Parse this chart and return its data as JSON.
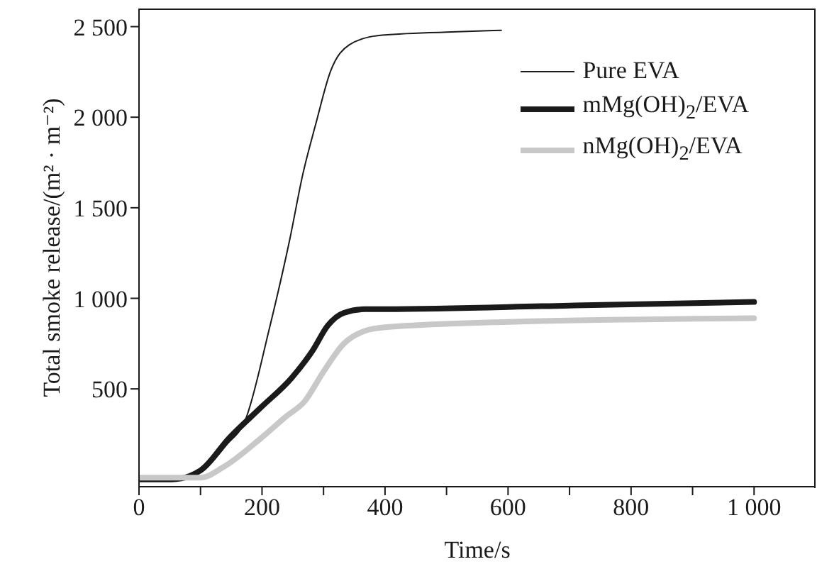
{
  "chart_data": {
    "type": "line",
    "xlabel": "Time/s",
    "ylabel": "Total smoke release/(m² · m⁻²)",
    "xlim": [
      0,
      1100
    ],
    "ylim": [
      -40,
      2600
    ],
    "xticks": [
      0,
      {
        "value": 100,
        "label": null
      },
      200,
      {
        "value": 300,
        "label": null
      },
      400,
      {
        "value": 500,
        "label": null
      },
      600,
      {
        "value": 700,
        "label": null
      },
      800,
      {
        "value": 900,
        "label": null
      },
      {
        "value": 1000,
        "label": "1 000"
      }
    ],
    "yticks": [
      500,
      {
        "value": 1000,
        "label": "1 000"
      },
      {
        "value": 1500,
        "label": "1 500"
      },
      {
        "value": 2000,
        "label": "2 000"
      },
      {
        "value": 2500,
        "label": "2 500"
      }
    ],
    "grid": false,
    "legend": "top right",
    "marker": "none",
    "line_style": "solid",
    "series": [
      {
        "name": "Pure EVA",
        "color": "#1a1a1a",
        "x": [
          0,
          60,
          100,
          142,
          173,
          211,
          246,
          266,
          288,
          311,
          342,
          388,
          500,
          589
        ],
        "values": [
          0,
          0,
          40,
          190,
          330,
          820,
          1340,
          1680,
          1970,
          2250,
          2400,
          2450,
          2470,
          2480
        ]
      },
      {
        "name": "mMg(OH)$_{2}$/EVA",
        "color": "#1a1a1a",
        "x": [
          0,
          53,
          100,
          147,
          199,
          248,
          282,
          307,
          333,
          367,
          400,
          700,
          1000
        ],
        "values": [
          0,
          0,
          50,
          230,
          400,
          560,
          710,
          850,
          920,
          940,
          940,
          960,
          980
        ]
      },
      {
        "name": "nMg(OH)$_{2}$/EVA",
        "color": "#c8c8c8",
        "x": [
          0,
          100,
          138,
          199,
          240,
          269,
          299,
          333,
          367,
          400,
          600,
          1000
        ],
        "values": [
          10,
          10,
          70,
          230,
          350,
          430,
          590,
          750,
          820,
          840,
          870,
          890
        ]
      }
    ]
  }
}
